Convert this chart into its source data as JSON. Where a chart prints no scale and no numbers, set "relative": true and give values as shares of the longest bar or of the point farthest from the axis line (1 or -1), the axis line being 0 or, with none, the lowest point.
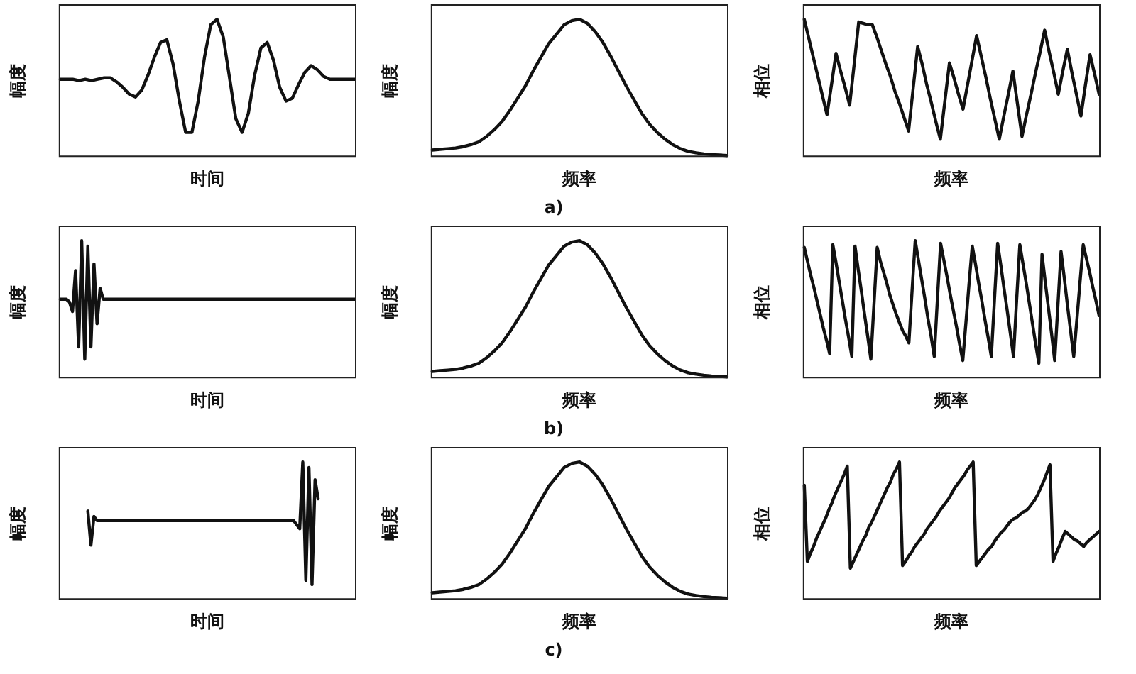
{
  "chart_data": [
    {
      "type": "line",
      "relative": true,
      "xlabel": "时间",
      "ylabel": "幅度",
      "color": "#111111",
      "marker": "none",
      "categories": [
        null,
        null,
        null,
        null,
        null,
        null,
        null,
        null,
        null,
        null,
        null,
        null,
        null,
        null,
        null,
        null,
        null,
        null,
        null,
        null,
        null,
        null,
        null,
        null,
        null,
        null,
        null,
        null,
        null,
        null,
        null,
        null,
        null,
        null,
        null,
        null,
        null,
        null,
        null,
        null,
        null,
        null,
        null,
        null,
        null,
        null,
        null,
        null
      ],
      "values": [
        0.56,
        0.56,
        0.56,
        0.55,
        0.56,
        0.55,
        0.56,
        0.57,
        0.57,
        0.54,
        0.5,
        0.45,
        0.43,
        0.48,
        0.59,
        0.72,
        0.83,
        0.85,
        0.67,
        0.4,
        0.17,
        0.17,
        0.4,
        0.72,
        0.96,
        1,
        0.87,
        0.57,
        0.27,
        0.17,
        0.31,
        0.59,
        0.79,
        0.83,
        0.7,
        0.5,
        0.4,
        0.42,
        0.52,
        0.61,
        0.66,
        0.63,
        0.58,
        0.56,
        0.56,
        0.56,
        0.56,
        0.56
      ]
    },
    {
      "type": "line",
      "relative": true,
      "xlabel": "频率",
      "ylabel": "幅度",
      "color": "#111111",
      "marker": "none",
      "annotations": [
        "a)"
      ],
      "categories": [
        null,
        null,
        null,
        null,
        null,
        null,
        null,
        null,
        null,
        null,
        null,
        null,
        null,
        null,
        null,
        null,
        null,
        null,
        null,
        null,
        null,
        null,
        null,
        null,
        null,
        null,
        null,
        null,
        null,
        null,
        null,
        null,
        null,
        null,
        null,
        null,
        null,
        null,
        null
      ],
      "values": [
        0.04,
        0.045,
        0.05,
        0.055,
        0.065,
        0.08,
        0.1,
        0.14,
        0.19,
        0.25,
        0.33,
        0.42,
        0.51,
        0.62,
        0.72,
        0.82,
        0.89,
        0.96,
        0.99,
        1,
        0.97,
        0.91,
        0.83,
        0.73,
        0.62,
        0.51,
        0.41,
        0.31,
        0.23,
        0.17,
        0.12,
        0.08,
        0.05,
        0.03,
        0.02,
        0.012,
        0.007,
        0.004,
        0
      ]
    },
    {
      "type": "line",
      "relative": true,
      "xlabel": "频率",
      "ylabel": "相位",
      "color": "#111111",
      "marker": "none",
      "categories": [
        null,
        null,
        null,
        null,
        null,
        null,
        null,
        null,
        null,
        null,
        null,
        null,
        null,
        null,
        null,
        null,
        null,
        null,
        null,
        null,
        null,
        null,
        null,
        null,
        null,
        null,
        null,
        null,
        null,
        null,
        null,
        null,
        null,
        null,
        null,
        null,
        null,
        null,
        null,
        null,
        null,
        null,
        null,
        null,
        null,
        null,
        null,
        null,
        null,
        null,
        null,
        null,
        null,
        null,
        null,
        null,
        null,
        null,
        null,
        null,
        null,
        null,
        null,
        null,
        null,
        null
      ],
      "values": [
        1,
        0.86,
        0.72,
        0.58,
        0.44,
        0.3,
        0.52,
        0.75,
        0.62,
        0.5,
        0.37,
        0.67,
        0.98,
        0.97,
        0.96,
        0.96,
        0.87,
        0.77,
        0.67,
        0.58,
        0.47,
        0.38,
        0.28,
        0.18,
        0.49,
        0.8,
        0.67,
        0.52,
        0.39,
        0.25,
        0.12,
        0.4,
        0.68,
        0.57,
        0.45,
        0.34,
        0.52,
        0.7,
        0.88,
        0.73,
        0.58,
        0.42,
        0.27,
        0.12,
        0.29,
        0.45,
        0.62,
        0.38,
        0.14,
        0.3,
        0.45,
        0.61,
        0.76,
        0.92,
        0.76,
        0.61,
        0.45,
        0.62,
        0.78,
        0.61,
        0.45,
        0.29,
        0.52,
        0.74,
        0.6,
        0.45
      ]
    },
    {
      "type": "line",
      "relative": true,
      "xlabel": "时间",
      "ylabel": "幅度",
      "color": "#111111",
      "marker": "none",
      "categories": [
        null,
        null,
        null,
        null,
        null,
        null,
        null,
        null,
        null,
        null,
        null,
        null,
        null,
        null,
        null,
        null,
        null,
        null,
        null,
        null,
        null,
        null,
        null,
        null,
        null,
        null,
        null,
        null,
        null,
        null,
        null,
        null,
        null,
        null,
        null,
        null,
        null,
        null,
        null,
        null,
        null,
        null,
        null,
        null,
        null,
        null,
        null,
        null,
        null,
        null,
        null,
        null,
        null,
        null,
        null,
        null,
        null,
        null,
        null,
        null,
        null,
        null,
        null,
        null,
        null,
        null,
        null,
        null,
        null,
        null,
        null,
        null,
        null,
        null,
        null,
        null,
        null,
        null,
        null,
        null,
        null,
        null,
        null,
        null,
        null,
        null,
        null,
        null,
        null,
        null,
        null,
        null,
        null,
        null,
        null,
        null,
        null
      ],
      "values": [
        0.57,
        0.57,
        0.57,
        0.55,
        0.48,
        0.78,
        0.22,
        1,
        0.13,
        0.96,
        0.22,
        0.83,
        0.39,
        0.65,
        0.57,
        0.57,
        0.57,
        0.57,
        0.57,
        0.57,
        0.57,
        0.57,
        0.57,
        0.57,
        0.57,
        0.57,
        0.57,
        0.57,
        0.57,
        0.57,
        0.57,
        0.57,
        0.57,
        0.57,
        0.57,
        0.57,
        0.57,
        0.57,
        0.57,
        0.57,
        0.57,
        0.57,
        0.57,
        0.57,
        0.57,
        0.57,
        0.57,
        0.57,
        0.57,
        0.57,
        0.57,
        0.57,
        0.57,
        0.57,
        0.57,
        0.57,
        0.57,
        0.57,
        0.57,
        0.57,
        0.57,
        0.57,
        0.57,
        0.57,
        0.57,
        0.57,
        0.57,
        0.57,
        0.57,
        0.57,
        0.57,
        0.57,
        0.57,
        0.57,
        0.57,
        0.57,
        0.57,
        0.57,
        0.57,
        0.57,
        0.57,
        0.57,
        0.57,
        0.57,
        0.57,
        0.57,
        0.57,
        0.57,
        0.57,
        0.57,
        0.57,
        0.57,
        0.57,
        0.57,
        0.57,
        0.57,
        0.57
      ]
    },
    {
      "type": "line",
      "relative": true,
      "xlabel": "频率",
      "ylabel": "幅度",
      "color": "#111111",
      "marker": "none",
      "annotations": [
        "b)"
      ],
      "categories": [
        null,
        null,
        null,
        null,
        null,
        null,
        null,
        null,
        null,
        null,
        null,
        null,
        null,
        null,
        null,
        null,
        null,
        null,
        null,
        null,
        null,
        null,
        null,
        null,
        null,
        null,
        null,
        null,
        null,
        null,
        null,
        null,
        null,
        null,
        null,
        null,
        null,
        null,
        null
      ],
      "values": [
        0.04,
        0.045,
        0.05,
        0.055,
        0.065,
        0.08,
        0.1,
        0.14,
        0.19,
        0.25,
        0.33,
        0.42,
        0.51,
        0.62,
        0.72,
        0.82,
        0.89,
        0.96,
        0.99,
        1,
        0.97,
        0.91,
        0.83,
        0.73,
        0.62,
        0.51,
        0.41,
        0.31,
        0.23,
        0.17,
        0.12,
        0.08,
        0.05,
        0.03,
        0.02,
        0.012,
        0.007,
        0.004,
        0
      ]
    },
    {
      "type": "line",
      "relative": true,
      "xlabel": "频率",
      "ylabel": "相位",
      "color": "#111111",
      "marker": "none",
      "categories": [
        null,
        null,
        null,
        null,
        null,
        null,
        null,
        null,
        null,
        null,
        null,
        null,
        null,
        null,
        null,
        null,
        null,
        null,
        null,
        null,
        null,
        null,
        null,
        null,
        null,
        null,
        null,
        null,
        null,
        null,
        null,
        null,
        null,
        null,
        null,
        null,
        null,
        null,
        null,
        null,
        null,
        null,
        null,
        null,
        null,
        null,
        null,
        null,
        null,
        null,
        null,
        null,
        null,
        null,
        null,
        null,
        null,
        null,
        null,
        null,
        null,
        null,
        null,
        null,
        null,
        null,
        null,
        null,
        null,
        null,
        null,
        null,
        null,
        null,
        null,
        null,
        null,
        null,
        null,
        null,
        null,
        null,
        null,
        null,
        null,
        null,
        null,
        null,
        null,
        null,
        null,
        null,
        null,
        null
      ],
      "values": [
        0.95,
        0.85,
        0.75,
        0.66,
        0.56,
        0.46,
        0.36,
        0.27,
        0.17,
        0.97,
        0.84,
        0.7,
        0.56,
        0.42,
        0.29,
        0.15,
        0.96,
        0.79,
        0.63,
        0.46,
        0.3,
        0.13,
        0.54,
        0.95,
        0.85,
        0.77,
        0.69,
        0.6,
        0.53,
        0.46,
        0.4,
        0.34,
        0.3,
        0.25,
        0.63,
        1,
        0.86,
        0.72,
        0.58,
        0.43,
        0.3,
        0.15,
        0.57,
        0.98,
        0.86,
        0.74,
        0.61,
        0.49,
        0.37,
        0.24,
        0.12,
        0.4,
        0.69,
        0.96,
        0.83,
        0.69,
        0.56,
        0.42,
        0.29,
        0.15,
        0.57,
        0.98,
        0.82,
        0.65,
        0.49,
        0.32,
        0.15,
        0.57,
        0.97,
        0.83,
        0.69,
        0.54,
        0.39,
        0.24,
        0.1,
        0.9,
        0.7,
        0.51,
        0.32,
        0.12,
        0.52,
        0.92,
        0.73,
        0.53,
        0.34,
        0.15,
        0.42,
        0.7,
        0.97,
        0.87,
        0.77,
        0.66,
        0.56,
        0.45
      ]
    },
    {
      "type": "line",
      "relative": true,
      "xlabel": "时间",
      "ylabel": "幅度",
      "color": "#111111",
      "marker": "none",
      "categories": [
        null,
        null,
        null,
        null,
        null,
        null,
        null,
        null,
        null,
        null,
        null,
        null,
        null,
        null,
        null,
        null,
        null,
        null,
        null,
        null,
        null,
        null,
        null,
        null,
        null,
        null,
        null,
        null,
        null,
        null,
        null,
        null,
        null,
        null,
        null,
        null,
        null,
        null,
        null,
        null,
        null,
        null,
        null,
        null,
        null,
        null,
        null,
        null,
        null,
        null,
        null,
        null,
        null,
        null,
        null,
        null,
        null,
        null,
        null,
        null,
        null,
        null,
        null,
        null,
        null,
        null,
        null,
        null,
        null,
        null,
        null,
        null,
        null,
        null,
        null,
        null,
        null,
        null,
        null,
        null,
        null,
        null,
        null,
        null,
        null,
        null,
        null,
        null,
        null,
        null,
        null,
        null,
        null,
        null,
        null,
        null,
        null
      ],
      "values": [
        null,
        null,
        null,
        null,
        null,
        null,
        null,
        null,
        null,
        0.64,
        0.39,
        0.6,
        0.57,
        0.57,
        0.57,
        0.57,
        0.57,
        0.57,
        0.57,
        0.57,
        0.57,
        0.57,
        0.57,
        0.57,
        0.57,
        0.57,
        0.57,
        0.57,
        0.57,
        0.57,
        0.57,
        0.57,
        0.57,
        0.57,
        0.57,
        0.57,
        0.57,
        0.57,
        0.57,
        0.57,
        0.57,
        0.57,
        0.57,
        0.57,
        0.57,
        0.57,
        0.57,
        0.57,
        0.57,
        0.57,
        0.57,
        0.57,
        0.57,
        0.57,
        0.57,
        0.57,
        0.57,
        0.57,
        0.57,
        0.57,
        0.57,
        0.57,
        0.57,
        0.57,
        0.57,
        0.57,
        0.57,
        0.57,
        0.57,
        0.57,
        0.57,
        0.57,
        0.57,
        0.57,
        0.57,
        0.57,
        0.57,
        0.54,
        0.51,
        1,
        0.13,
        0.96,
        0.1,
        0.87,
        0.73,
        null,
        null,
        null,
        null,
        null,
        null,
        null,
        null,
        null,
        null,
        null,
        null
      ]
    },
    {
      "type": "line",
      "relative": true,
      "xlabel": "频率",
      "ylabel": "幅度",
      "color": "#111111",
      "marker": "none",
      "annotations": [
        "c)"
      ],
      "categories": [
        null,
        null,
        null,
        null,
        null,
        null,
        null,
        null,
        null,
        null,
        null,
        null,
        null,
        null,
        null,
        null,
        null,
        null,
        null,
        null,
        null,
        null,
        null,
        null,
        null,
        null,
        null,
        null,
        null,
        null,
        null,
        null,
        null,
        null,
        null,
        null,
        null,
        null,
        null
      ],
      "values": [
        0.04,
        0.045,
        0.05,
        0.055,
        0.065,
        0.08,
        0.1,
        0.14,
        0.19,
        0.25,
        0.33,
        0.42,
        0.51,
        0.62,
        0.72,
        0.82,
        0.89,
        0.96,
        0.99,
        1,
        0.97,
        0.91,
        0.83,
        0.73,
        0.62,
        0.51,
        0.41,
        0.31,
        0.23,
        0.17,
        0.12,
        0.08,
        0.05,
        0.03,
        0.02,
        0.012,
        0.007,
        0.004,
        0
      ]
    },
    {
      "type": "line",
      "relative": true,
      "xlabel": "频率",
      "ylabel": "相位",
      "color": "#111111",
      "marker": "none",
      "categories": [
        null,
        null,
        null,
        null,
        null,
        null,
        null,
        null,
        null,
        null,
        null,
        null,
        null,
        null,
        null,
        null,
        null,
        null,
        null,
        null,
        null,
        null,
        null,
        null,
        null,
        null,
        null,
        null,
        null,
        null,
        null,
        null,
        null,
        null,
        null,
        null,
        null,
        null,
        null,
        null,
        null,
        null,
        null,
        null,
        null,
        null,
        null,
        null,
        null,
        null,
        null,
        null,
        null,
        null,
        null,
        null,
        null,
        null,
        null,
        null,
        null,
        null,
        null,
        null,
        null,
        null,
        null,
        null,
        null,
        null,
        null,
        null,
        null,
        null,
        null,
        null,
        null,
        null,
        null,
        null,
        null,
        null,
        null,
        null,
        null,
        null,
        null,
        null,
        null,
        null,
        null,
        null,
        null,
        null,
        null,
        null,
        null
      ],
      "values": [
        0.83,
        0.27,
        0.33,
        0.38,
        0.44,
        0.49,
        0.54,
        0.59,
        0.65,
        0.7,
        0.76,
        0.81,
        0.86,
        0.91,
        0.97,
        0.22,
        0.27,
        0.32,
        0.37,
        0.42,
        0.46,
        0.52,
        0.56,
        0.61,
        0.66,
        0.71,
        0.76,
        0.81,
        0.85,
        0.91,
        0.95,
        1,
        0.24,
        0.27,
        0.31,
        0.34,
        0.38,
        0.41,
        0.44,
        0.47,
        0.51,
        0.54,
        0.57,
        0.6,
        0.64,
        0.67,
        0.7,
        0.73,
        0.77,
        0.81,
        0.84,
        0.87,
        0.9,
        0.94,
        0.97,
        1,
        0.24,
        0.27,
        0.3,
        0.33,
        0.36,
        0.38,
        0.42,
        0.45,
        0.48,
        0.5,
        0.53,
        0.56,
        0.58,
        0.59,
        0.61,
        0.63,
        0.64,
        0.66,
        0.69,
        0.72,
        0.76,
        0.81,
        0.86,
        0.92,
        0.98,
        0.27,
        0.33,
        0.38,
        0.44,
        0.49,
        0.47,
        0.45,
        0.43,
        0.42,
        0.4,
        0.38,
        0.41,
        0.43,
        0.45,
        0.47,
        0.49
      ]
    }
  ]
}
